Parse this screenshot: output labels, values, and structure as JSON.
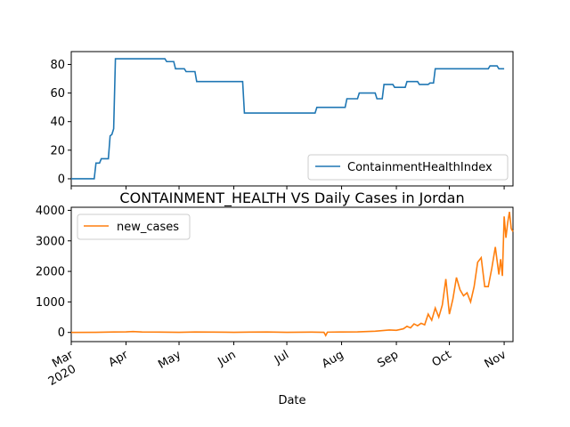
{
  "chart_data": [
    {
      "type": "line",
      "title": "",
      "xlabel": "",
      "ylabel": "",
      "ylim": [
        -5,
        89
      ],
      "yticks": [
        0,
        20,
        40,
        60,
        80
      ],
      "grid": false,
      "legend": "lower-right",
      "series": [
        {
          "name": "ContainmentHealthIndex",
          "color": "#1f77b4",
          "points": [
            [
              "2020-03-01",
              0
            ],
            [
              "2020-03-14",
              0
            ],
            [
              "2020-03-15",
              11
            ],
            [
              "2020-03-17",
              11
            ],
            [
              "2020-03-18",
              14
            ],
            [
              "2020-03-22",
              14
            ],
            [
              "2020-03-23",
              30
            ],
            [
              "2020-03-24",
              31
            ],
            [
              "2020-03-25",
              35
            ],
            [
              "2020-03-26",
              84
            ],
            [
              "2020-04-23",
              84
            ],
            [
              "2020-04-24",
              82
            ],
            [
              "2020-04-28",
              82
            ],
            [
              "2020-04-29",
              77
            ],
            [
              "2020-05-04",
              77
            ],
            [
              "2020-05-05",
              75
            ],
            [
              "2020-05-10",
              75
            ],
            [
              "2020-05-11",
              68
            ],
            [
              "2020-06-06",
              68
            ],
            [
              "2020-06-07",
              46
            ],
            [
              "2020-07-17",
              46
            ],
            [
              "2020-07-18",
              50
            ],
            [
              "2020-08-03",
              50
            ],
            [
              "2020-08-04",
              56
            ],
            [
              "2020-08-10",
              56
            ],
            [
              "2020-08-11",
              60
            ],
            [
              "2020-08-20",
              60
            ],
            [
              "2020-08-21",
              56
            ],
            [
              "2020-08-24",
              56
            ],
            [
              "2020-08-25",
              66
            ],
            [
              "2020-08-30",
              66
            ],
            [
              "2020-08-31",
              64
            ],
            [
              "2020-09-06",
              64
            ],
            [
              "2020-09-07",
              68
            ],
            [
              "2020-09-13",
              68
            ],
            [
              "2020-09-14",
              66
            ],
            [
              "2020-09-19",
              66
            ],
            [
              "2020-09-20",
              67
            ],
            [
              "2020-09-22",
              67
            ],
            [
              "2020-09-23",
              77
            ],
            [
              "2020-10-23",
              77
            ],
            [
              "2020-10-24",
              79
            ],
            [
              "2020-10-28",
              79
            ],
            [
              "2020-10-29",
              77
            ],
            [
              "2020-11-01",
              77
            ]
          ]
        }
      ]
    },
    {
      "type": "line",
      "title": "CONTAINMENT_HEALTH VS Daily Cases in Jordan",
      "xlabel": "Date",
      "ylabel": "",
      "ylim": [
        -300,
        4100
      ],
      "yticks": [
        0,
        1000,
        2000,
        3000,
        4000
      ],
      "grid": false,
      "legend": "upper-left",
      "series": [
        {
          "name": "new_cases",
          "color": "#ff7f0e",
          "points": [
            [
              "2020-03-01",
              0
            ],
            [
              "2020-03-15",
              5
            ],
            [
              "2020-03-25",
              15
            ],
            [
              "2020-04-01",
              20
            ],
            [
              "2020-04-05",
              30
            ],
            [
              "2020-04-10",
              15
            ],
            [
              "2020-04-20",
              10
            ],
            [
              "2020-05-01",
              5
            ],
            [
              "2020-05-10",
              15
            ],
            [
              "2020-05-20",
              10
            ],
            [
              "2020-06-01",
              5
            ],
            [
              "2020-06-10",
              10
            ],
            [
              "2020-06-20",
              15
            ],
            [
              "2020-07-01",
              5
            ],
            [
              "2020-07-15",
              10
            ],
            [
              "2020-07-22",
              5
            ],
            [
              "2020-07-23",
              -100
            ],
            [
              "2020-07-24",
              10
            ],
            [
              "2020-08-01",
              15
            ],
            [
              "2020-08-10",
              20
            ],
            [
              "2020-08-20",
              40
            ],
            [
              "2020-08-28",
              80
            ],
            [
              "2020-09-01",
              70
            ],
            [
              "2020-09-05",
              120
            ],
            [
              "2020-09-07",
              200
            ],
            [
              "2020-09-09",
              150
            ],
            [
              "2020-09-11",
              280
            ],
            [
              "2020-09-13",
              220
            ],
            [
              "2020-09-15",
              300
            ],
            [
              "2020-09-17",
              250
            ],
            [
              "2020-09-19",
              600
            ],
            [
              "2020-09-21",
              400
            ],
            [
              "2020-09-23",
              800
            ],
            [
              "2020-09-25",
              500
            ],
            [
              "2020-09-27",
              900
            ],
            [
              "2020-09-29",
              1750
            ],
            [
              "2020-10-01",
              600
            ],
            [
              "2020-10-03",
              1100
            ],
            [
              "2020-10-05",
              1800
            ],
            [
              "2020-10-07",
              1400
            ],
            [
              "2020-10-09",
              1200
            ],
            [
              "2020-10-11",
              1300
            ],
            [
              "2020-10-13",
              1000
            ],
            [
              "2020-10-15",
              1500
            ],
            [
              "2020-10-17",
              2300
            ],
            [
              "2020-10-19",
              2450
            ],
            [
              "2020-10-21",
              1500
            ],
            [
              "2020-10-23",
              1500
            ],
            [
              "2020-10-25",
              2100
            ],
            [
              "2020-10-27",
              2800
            ],
            [
              "2020-10-29",
              1900
            ],
            [
              "2020-10-30",
              2400
            ],
            [
              "2020-10-31",
              1850
            ],
            [
              "2020-11-01",
              3800
            ],
            [
              "2020-11-02",
              3100
            ],
            [
              "2020-11-03",
              3600
            ],
            [
              "2020-11-04",
              3950
            ],
            [
              "2020-11-05",
              3400
            ],
            [
              "2020-11-06",
              3300
            ]
          ]
        }
      ],
      "xticks": [
        {
          "date": "2020-03-01",
          "label": "Mar",
          "sub": "2020"
        },
        {
          "date": "2020-04-01",
          "label": "Apr",
          "sub": ""
        },
        {
          "date": "2020-05-01",
          "label": "May",
          "sub": ""
        },
        {
          "date": "2020-06-01",
          "label": "Jun",
          "sub": ""
        },
        {
          "date": "2020-07-01",
          "label": "Jul",
          "sub": ""
        },
        {
          "date": "2020-08-01",
          "label": "Aug",
          "sub": ""
        },
        {
          "date": "2020-09-01",
          "label": "Sep",
          "sub": ""
        },
        {
          "date": "2020-10-01",
          "label": "Oct",
          "sub": ""
        },
        {
          "date": "2020-11-01",
          "label": "Nov",
          "sub": ""
        }
      ]
    }
  ]
}
